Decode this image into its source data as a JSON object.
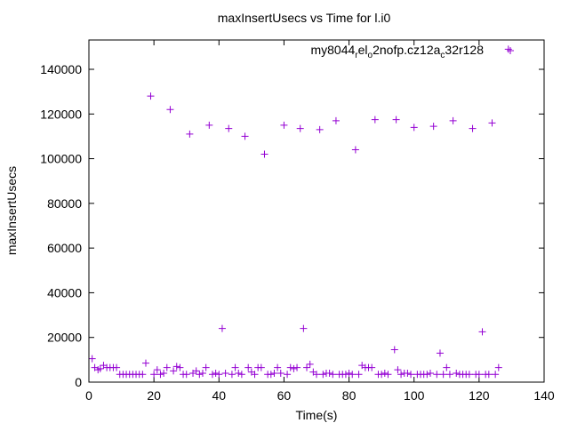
{
  "chart_data": {
    "type": "scatter",
    "title": "maxInsertUsecs vs Time for l.i0",
    "xlabel": "Time(s)",
    "ylabel": "maxInsertUsecs",
    "xlim": [
      0,
      140
    ],
    "ylim": [
      0,
      150000
    ],
    "xticks": [
      0,
      20,
      40,
      60,
      80,
      100,
      120,
      140
    ],
    "yticks": [
      0,
      20000,
      40000,
      60000,
      80000,
      100000,
      120000,
      140000
    ],
    "grid": false,
    "legend_position": "top-right",
    "series": [
      {
        "name": "my8044_rel_o2nofp.cz12a_c32r128",
        "color": "#9400d3",
        "marker": "plus",
        "points": [
          [
            1,
            10500
          ],
          [
            1.8,
            6500
          ],
          [
            2.8,
            5500
          ],
          [
            3.5,
            6000
          ],
          [
            4.5,
            7500
          ],
          [
            5.5,
            6500
          ],
          [
            6.5,
            6500
          ],
          [
            7.5,
            6500
          ],
          [
            8.5,
            6500
          ],
          [
            9.5,
            3500
          ],
          [
            10.5,
            3500
          ],
          [
            11.5,
            3500
          ],
          [
            12.5,
            3500
          ],
          [
            13.5,
            3500
          ],
          [
            14.5,
            3500
          ],
          [
            15.5,
            3500
          ],
          [
            16.5,
            3500
          ],
          [
            17.5,
            8500
          ],
          [
            19,
            128000
          ],
          [
            20,
            3500
          ],
          [
            21,
            5500
          ],
          [
            22,
            3500
          ],
          [
            23,
            4000
          ],
          [
            24,
            6500
          ],
          [
            25,
            122000
          ],
          [
            26,
            5000
          ],
          [
            27,
            7000
          ],
          [
            28,
            6500
          ],
          [
            29,
            3500
          ],
          [
            30,
            3500
          ],
          [
            31,
            111000
          ],
          [
            32,
            4000
          ],
          [
            33,
            5000
          ],
          [
            34,
            3500
          ],
          [
            35,
            4000
          ],
          [
            36,
            6500
          ],
          [
            37,
            115000
          ],
          [
            38,
            3500
          ],
          [
            39,
            4000
          ],
          [
            40,
            3500
          ],
          [
            41,
            24000
          ],
          [
            42,
            4000
          ],
          [
            43,
            113500
          ],
          [
            44,
            3500
          ],
          [
            45,
            6500
          ],
          [
            46,
            4000
          ],
          [
            47,
            3500
          ],
          [
            48,
            110000
          ],
          [
            49,
            6500
          ],
          [
            50,
            4500
          ],
          [
            51,
            3500
          ],
          [
            52,
            6500
          ],
          [
            53,
            6500
          ],
          [
            54,
            102000
          ],
          [
            55,
            3500
          ],
          [
            56,
            3500
          ],
          [
            57,
            4000
          ],
          [
            58,
            6500
          ],
          [
            59,
            4000
          ],
          [
            60,
            115000
          ],
          [
            61,
            3500
          ],
          [
            62,
            6500
          ],
          [
            63,
            6000
          ],
          [
            64,
            6500
          ],
          [
            65,
            113500
          ],
          [
            66,
            24000
          ],
          [
            67,
            6500
          ],
          [
            68,
            8000
          ],
          [
            69,
            4500
          ],
          [
            70,
            3500
          ],
          [
            71,
            113000
          ],
          [
            72,
            3500
          ],
          [
            73,
            4000
          ],
          [
            74,
            4000
          ],
          [
            75,
            3500
          ],
          [
            76,
            117000
          ],
          [
            77,
            3500
          ],
          [
            78,
            3500
          ],
          [
            79,
            3500
          ],
          [
            80,
            4000
          ],
          [
            81,
            3500
          ],
          [
            82,
            104000
          ],
          [
            83,
            3500
          ],
          [
            84,
            7500
          ],
          [
            85,
            6500
          ],
          [
            86,
            6500
          ],
          [
            87,
            6500
          ],
          [
            88,
            117500
          ],
          [
            89,
            3500
          ],
          [
            90,
            3500
          ],
          [
            91,
            4000
          ],
          [
            92,
            3500
          ],
          [
            94,
            14500
          ],
          [
            94.5,
            117500
          ],
          [
            95,
            5500
          ],
          [
            96,
            3500
          ],
          [
            97,
            4000
          ],
          [
            98,
            4000
          ],
          [
            99,
            3500
          ],
          [
            100,
            114000
          ],
          [
            101,
            3500
          ],
          [
            102,
            3500
          ],
          [
            103,
            3500
          ],
          [
            104,
            3500
          ],
          [
            105,
            4000
          ],
          [
            106,
            114500
          ],
          [
            107,
            3500
          ],
          [
            108,
            13000
          ],
          [
            109,
            3500
          ],
          [
            110,
            6500
          ],
          [
            111,
            3500
          ],
          [
            112,
            117000
          ],
          [
            113,
            4000
          ],
          [
            114,
            3500
          ],
          [
            115,
            3500
          ],
          [
            116,
            3500
          ],
          [
            117,
            3500
          ],
          [
            118,
            113500
          ],
          [
            119,
            3500
          ],
          [
            120,
            3500
          ],
          [
            121,
            22500
          ],
          [
            122,
            3500
          ],
          [
            123,
            3500
          ],
          [
            124,
            116000
          ],
          [
            125,
            3500
          ],
          [
            126,
            6500
          ],
          [
            129,
            149000
          ]
        ]
      }
    ]
  }
}
